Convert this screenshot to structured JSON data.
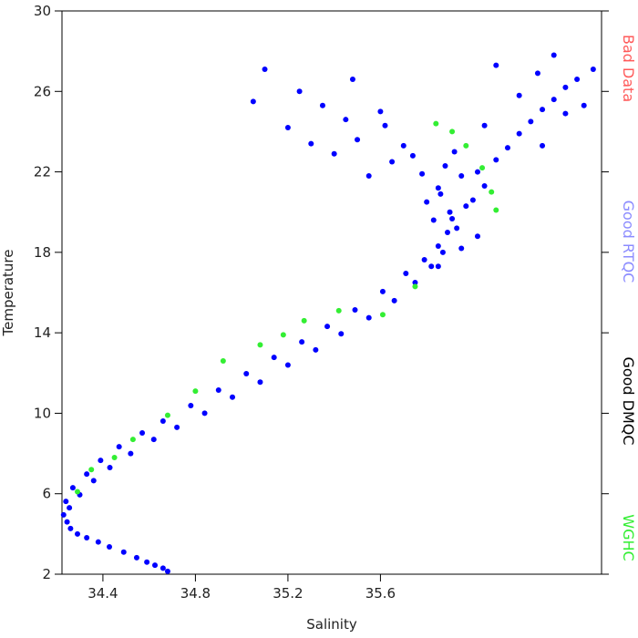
{
  "chart_data": {
    "type": "scatter",
    "x_label": "Salinity",
    "y_label": "Temperature",
    "xlim": [
      34.223,
      36.556
    ],
    "ylim": [
      2,
      30
    ],
    "xticks": [
      34.4,
      34.8,
      35.2,
      35.6
    ],
    "yticks": [
      2,
      6,
      10,
      14,
      18,
      22,
      26,
      30
    ],
    "legend": [
      {
        "label": "Bad Data",
        "color": "#ff5a5a"
      },
      {
        "label": "Good RTQC",
        "color": "#8c8cff"
      },
      {
        "label": "Good DMQC",
        "color": "#000000"
      },
      {
        "label": "WGHC",
        "color": "#33ee33"
      }
    ],
    "series": [
      {
        "color": "#0000ff",
        "x": [
          34.68,
          34.625,
          34.546,
          34.428,
          34.33,
          34.26,
          34.23,
          34.24,
          34.27,
          34.33,
          34.39,
          34.47,
          34.57,
          34.66,
          34.78,
          34.9,
          35.02,
          35.14,
          35.26,
          35.37,
          35.49,
          35.61,
          35.71,
          35.79,
          35.85,
          35.89,
          35.91,
          34.66,
          34.59,
          34.49,
          34.38,
          34.29,
          34.245,
          34.255,
          34.3,
          34.36,
          34.43,
          34.52,
          34.62,
          34.72,
          34.84,
          34.96,
          35.08,
          35.2,
          35.32,
          35.43,
          35.55,
          35.66,
          35.75,
          35.82,
          35.87,
          35.8,
          35.85,
          35.9,
          35.95,
          36.0,
          35.88,
          35.78,
          35.83,
          35.93,
          36.02,
          35.86,
          35.97,
          35.74,
          35.7,
          35.92,
          36.05,
          36.1,
          36.15,
          36.2,
          36.25,
          36.3,
          36.35,
          36.4,
          36.45,
          36.52,
          36.2,
          36.28,
          36.1,
          36.35,
          36.05,
          36.4,
          36.3,
          36.48,
          35.45,
          35.35,
          35.25,
          35.1,
          35.05,
          35.2,
          35.5,
          35.6,
          35.4,
          35.55,
          35.65,
          35.3,
          35.48,
          35.62,
          35.95,
          36.02,
          35.85
        ],
        "y": [
          2.14,
          2.45,
          2.82,
          3.36,
          3.81,
          4.27,
          4.95,
          5.62,
          6.3,
          6.98,
          7.66,
          8.34,
          9.02,
          9.61,
          10.38,
          11.15,
          11.97,
          12.78,
          13.55,
          14.32,
          15.14,
          16.05,
          16.95,
          17.63,
          18.31,
          18.99,
          19.67,
          2.3,
          2.6,
          3.1,
          3.6,
          4.0,
          4.6,
          5.3,
          5.95,
          6.65,
          7.3,
          8.0,
          8.7,
          9.3,
          10.0,
          10.8,
          11.55,
          12.4,
          13.15,
          13.95,
          14.75,
          15.6,
          16.5,
          17.3,
          18.0,
          20.5,
          21.2,
          20.0,
          21.8,
          20.6,
          22.3,
          21.9,
          19.6,
          19.2,
          22.0,
          20.9,
          20.3,
          22.8,
          23.3,
          23.0,
          21.3,
          22.6,
          23.2,
          23.9,
          24.5,
          25.1,
          25.6,
          26.2,
          26.6,
          27.1,
          25.8,
          26.9,
          27.3,
          27.8,
          24.3,
          24.9,
          23.3,
          25.3,
          24.6,
          25.3,
          26.0,
          27.1,
          25.5,
          24.2,
          23.6,
          25.0,
          22.9,
          21.8,
          22.5,
          23.4,
          26.6,
          24.3,
          18.2,
          18.8,
          17.3
        ]
      },
      {
        "color": "#33ee33",
        "x": [
          34.29,
          34.35,
          34.45,
          34.53,
          34.68,
          34.8,
          34.92,
          35.08,
          35.18,
          35.27,
          35.42,
          35.61,
          35.75,
          35.84,
          35.91,
          35.97,
          36.04,
          36.08,
          36.1
        ],
        "y": [
          6.1,
          7.2,
          7.8,
          8.7,
          9.9,
          11.1,
          12.6,
          13.4,
          13.9,
          14.6,
          15.1,
          14.9,
          16.3,
          24.4,
          24.0,
          23.3,
          22.2,
          21.0,
          20.1
        ]
      }
    ]
  }
}
